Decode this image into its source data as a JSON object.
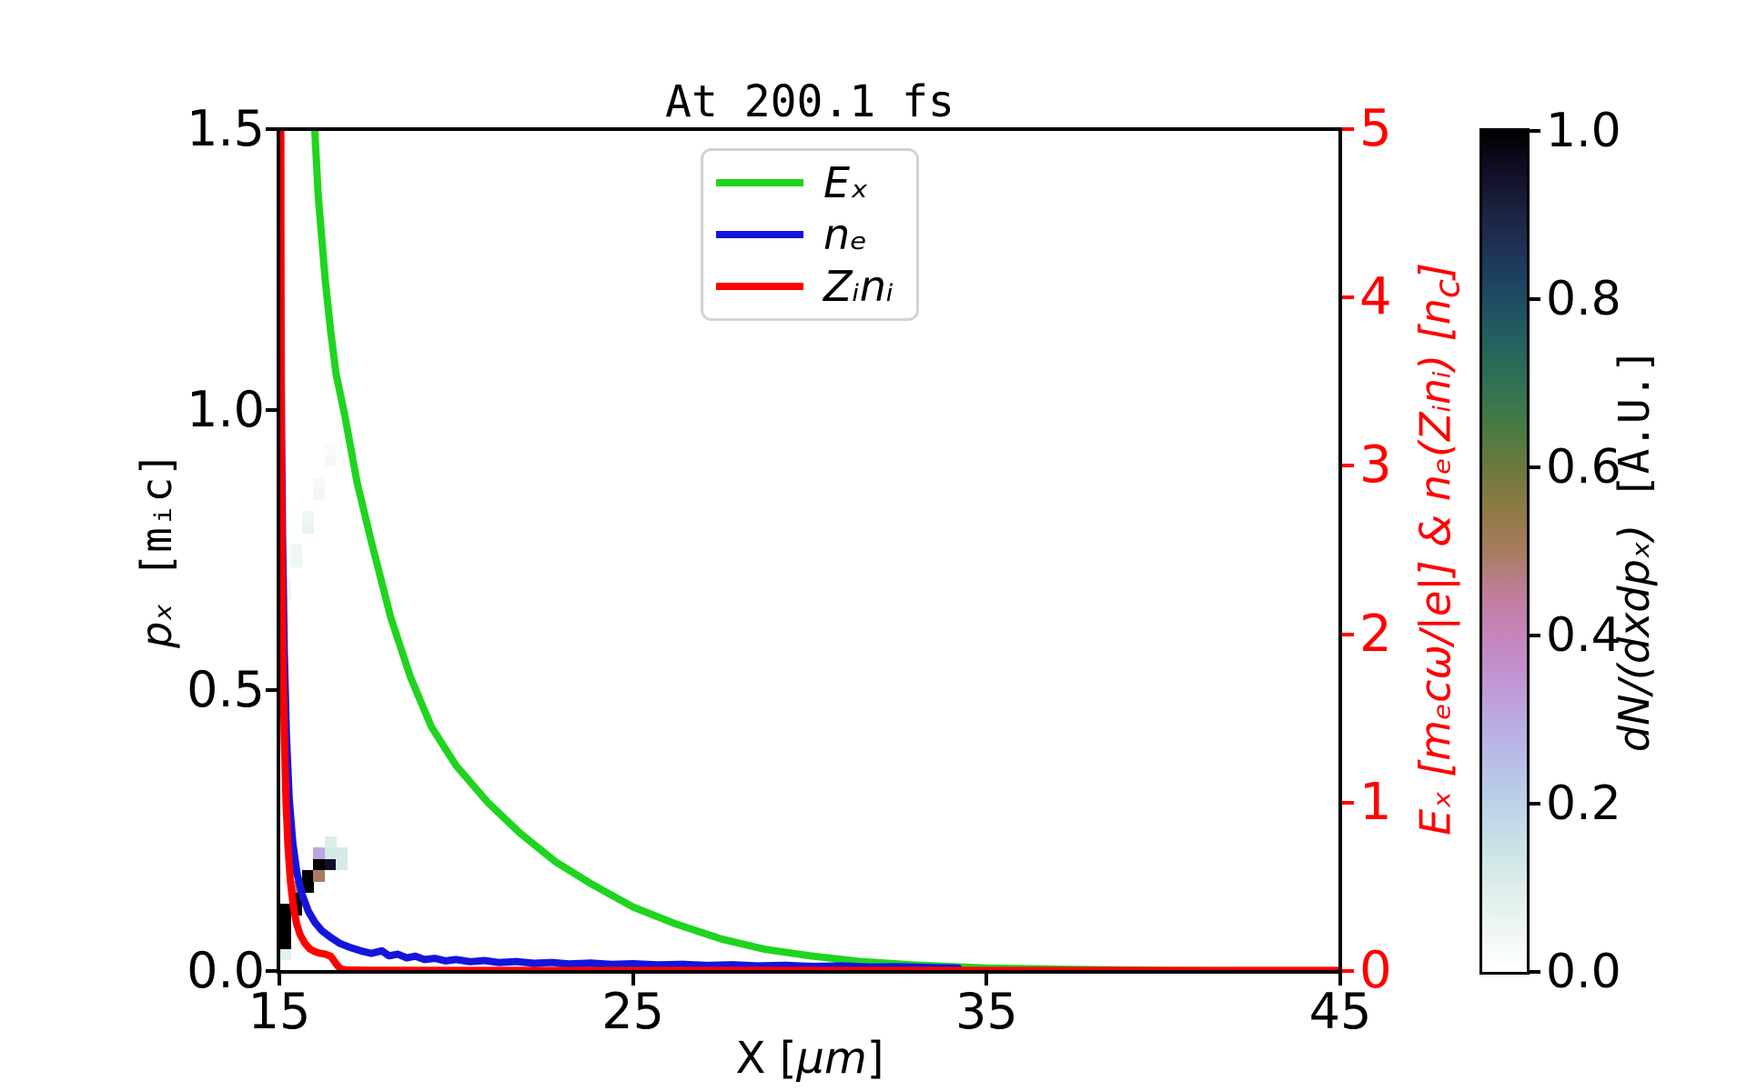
{
  "chart_data": {
    "type": "line+heatmap",
    "title": "At 200.1 fs",
    "x_axis": {
      "label_pre": "X [",
      "label_mu": "μm",
      "label_post": "]",
      "range": [
        15,
        45
      ],
      "ticks": [
        15,
        25,
        35,
        45
      ],
      "tick_labels": [
        "15",
        "25",
        "35",
        "45"
      ]
    },
    "left_y_axis": {
      "label_math": "pₓ",
      "label_unit": " [mᵢc]",
      "range": [
        0,
        1.5
      ],
      "ticks": [
        0,
        0.5,
        1.0,
        1.5
      ],
      "tick_labels": [
        "0.0",
        "0.5",
        "1.0",
        "1.5"
      ]
    },
    "right_y_axis": {
      "label_p1": "Eₓ [mₑcω/|e|] & nₑ(Zᵢnᵢ) [n",
      "label_sub": "c",
      "label_p2": "]",
      "range": [
        0,
        5
      ],
      "ticks": [
        0,
        1,
        2,
        3,
        4,
        5
      ],
      "tick_labels": [
        "0",
        "1",
        "2",
        "3",
        "4",
        "5"
      ],
      "color": "#ff0000"
    },
    "colorbar": {
      "label_math": "dN/(dxdpₓ)",
      "label_unit": " [A.U.]",
      "range": [
        0,
        1
      ],
      "ticks": [
        0,
        0.2,
        0.4,
        0.6,
        0.8,
        1.0
      ],
      "tick_labels": [
        "0.0",
        "0.2",
        "0.4",
        "0.6",
        "0.8",
        "1.0"
      ],
      "colormap_stops": [
        [
          0.0,
          "#ffffff"
        ],
        [
          0.05,
          "#eef6f1"
        ],
        [
          0.1,
          "#dcedea"
        ],
        [
          0.15,
          "#c9e2e6"
        ],
        [
          0.2,
          "#bcd1e8"
        ],
        [
          0.25,
          "#b8bee8"
        ],
        [
          0.3,
          "#bba9e0"
        ],
        [
          0.35,
          "#c094d2"
        ],
        [
          0.4,
          "#c485bb"
        ],
        [
          0.45,
          "#c07d9b"
        ],
        [
          0.5,
          "#a87c60"
        ],
        [
          0.55,
          "#8f7a45"
        ],
        [
          0.6,
          "#6b7a3c"
        ],
        [
          0.65,
          "#477a44"
        ],
        [
          0.7,
          "#2f7252"
        ],
        [
          0.75,
          "#22615f"
        ],
        [
          0.8,
          "#1e4c62"
        ],
        [
          0.85,
          "#1e365a"
        ],
        [
          0.9,
          "#1c2343"
        ],
        [
          0.95,
          "#120f28"
        ],
        [
          1.0,
          "#000000"
        ]
      ]
    },
    "legend": [
      {
        "label": "Eₓ",
        "color": "#1fd41f"
      },
      {
        "label": "nₑ",
        "color": "#1414dd"
      },
      {
        "label": "Zᵢnᵢ",
        "color": "#ff0000"
      }
    ],
    "series": [
      {
        "name": "Ex",
        "color": "#1fd41f",
        "axis": "right",
        "points": [
          [
            15.95,
            5.2
          ],
          [
            16.1,
            4.6
          ],
          [
            16.3,
            4.1
          ],
          [
            16.45,
            3.8
          ],
          [
            16.6,
            3.55
          ],
          [
            16.85,
            3.3
          ],
          [
            17.2,
            2.9
          ],
          [
            17.6,
            2.55
          ],
          [
            18.15,
            2.1
          ],
          [
            18.7,
            1.75
          ],
          [
            19.3,
            1.45
          ],
          [
            20.0,
            1.22
          ],
          [
            20.9,
            1.0
          ],
          [
            21.8,
            0.82
          ],
          [
            22.8,
            0.65
          ],
          [
            23.8,
            0.52
          ],
          [
            25.0,
            0.38
          ],
          [
            26.2,
            0.28
          ],
          [
            27.5,
            0.19
          ],
          [
            28.7,
            0.13
          ],
          [
            30.0,
            0.09
          ],
          [
            31.5,
            0.055
          ],
          [
            33.0,
            0.035
          ],
          [
            35.0,
            0.018
          ],
          [
            37.5,
            0.009
          ],
          [
            40.0,
            0.004
          ],
          [
            42.5,
            0.002
          ],
          [
            45.0,
            0.001
          ]
        ]
      },
      {
        "name": "ne",
        "color": "#1414dd",
        "axis": "right",
        "points": [
          [
            15.02,
            5.2
          ],
          [
            15.05,
            3.6
          ],
          [
            15.09,
            2.6
          ],
          [
            15.14,
            1.9
          ],
          [
            15.2,
            1.4
          ],
          [
            15.28,
            1.02
          ],
          [
            15.38,
            0.76
          ],
          [
            15.5,
            0.58
          ],
          [
            15.65,
            0.45
          ],
          [
            15.82,
            0.355
          ],
          [
            16.0,
            0.29
          ],
          [
            16.2,
            0.24
          ],
          [
            16.45,
            0.2
          ],
          [
            16.7,
            0.165
          ],
          [
            17.0,
            0.14
          ],
          [
            17.3,
            0.12
          ],
          [
            17.6,
            0.105
          ],
          [
            17.9,
            0.12
          ],
          [
            18.1,
            0.09
          ],
          [
            18.35,
            0.1
          ],
          [
            18.6,
            0.078
          ],
          [
            18.85,
            0.088
          ],
          [
            19.1,
            0.068
          ],
          [
            19.4,
            0.075
          ],
          [
            19.7,
            0.06
          ],
          [
            20.0,
            0.068
          ],
          [
            20.4,
            0.055
          ],
          [
            20.8,
            0.062
          ],
          [
            21.2,
            0.05
          ],
          [
            21.7,
            0.056
          ],
          [
            22.2,
            0.046
          ],
          [
            22.7,
            0.051
          ],
          [
            23.2,
            0.042
          ],
          [
            23.8,
            0.047
          ],
          [
            24.4,
            0.039
          ],
          [
            25.0,
            0.043
          ],
          [
            25.7,
            0.036
          ],
          [
            26.4,
            0.04
          ],
          [
            27.1,
            0.033
          ],
          [
            27.8,
            0.037
          ],
          [
            28.5,
            0.03
          ],
          [
            29.3,
            0.034
          ],
          [
            30.1,
            0.027
          ],
          [
            30.9,
            0.03
          ],
          [
            31.7,
            0.024
          ],
          [
            32.5,
            0.026
          ],
          [
            33.3,
            0.021
          ],
          [
            34.2,
            0.018
          ]
        ]
      },
      {
        "name": "Zini",
        "color": "#ff0000",
        "axis": "right",
        "points": [
          [
            15.04,
            5.2
          ],
          [
            15.05,
            3.6
          ],
          [
            15.07,
            2.6
          ],
          [
            15.1,
            1.9
          ],
          [
            15.14,
            1.4
          ],
          [
            15.19,
            1.0
          ],
          [
            15.25,
            0.72
          ],
          [
            15.32,
            0.52
          ],
          [
            15.4,
            0.38
          ],
          [
            15.49,
            0.28
          ],
          [
            15.59,
            0.215
          ],
          [
            15.72,
            0.165
          ],
          [
            15.86,
            0.132
          ],
          [
            16.0,
            0.115
          ],
          [
            16.15,
            0.105
          ],
          [
            16.3,
            0.1
          ],
          [
            16.45,
            0.088
          ],
          [
            16.55,
            0.06
          ],
          [
            16.65,
            0.03
          ],
          [
            16.75,
            0.012
          ],
          [
            16.9,
            0.006
          ],
          [
            17.5,
            0.004
          ],
          [
            20.0,
            0.003
          ],
          [
            45.0,
            0.003
          ]
        ]
      }
    ],
    "heatmap": {
      "origin": [
        15,
        0
      ],
      "cell_dx": 0.32,
      "cell_dp": 0.02,
      "cells": [
        [
          0,
          1,
          0.08
        ],
        [
          0,
          2,
          1
        ],
        [
          0,
          3,
          1
        ],
        [
          0,
          4,
          1
        ],
        [
          0,
          5,
          1
        ],
        [
          1,
          5,
          1
        ],
        [
          1,
          6,
          1
        ],
        [
          1,
          7,
          0.5
        ],
        [
          2,
          7,
          1
        ],
        [
          2,
          8,
          1
        ],
        [
          3,
          8,
          0.5
        ],
        [
          3,
          9,
          1
        ],
        [
          3,
          10,
          0.3
        ],
        [
          4,
          9,
          0.95
        ],
        [
          4,
          10,
          0.12
        ],
        [
          5,
          9,
          0.12
        ],
        [
          5,
          10,
          0.12
        ],
        [
          4,
          11,
          0.1
        ],
        [
          0,
          33,
          0.05
        ],
        [
          0,
          34,
          0.04
        ],
        [
          1,
          36,
          0.05
        ],
        [
          1,
          37,
          0.04
        ],
        [
          2,
          39,
          0.06
        ],
        [
          2,
          40,
          0.04
        ],
        [
          3,
          42,
          0.04
        ],
        [
          3,
          43,
          0.03
        ],
        [
          4,
          45,
          0.03
        ],
        [
          4,
          46,
          0.02
        ],
        [
          5,
          48,
          0.02
        ]
      ]
    }
  }
}
